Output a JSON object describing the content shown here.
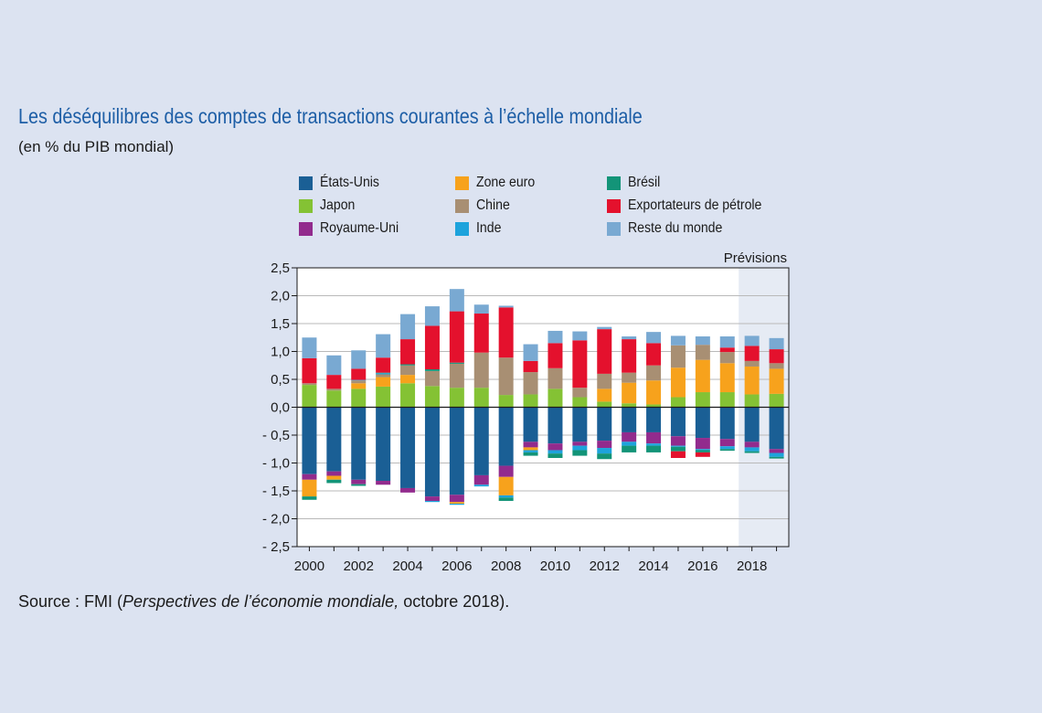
{
  "title": "Les déséquilibres des comptes de transactions courantes à l’échelle mondiale",
  "subtitle": "(en % du PIB mondial)",
  "source": {
    "prefix": "Source : FMI (",
    "italic": "Perspectives de l’économie mondiale,",
    "suffix": " octobre 2018)."
  },
  "chart_data": {
    "type": "bar",
    "stacked": true,
    "forecast_label": "Prévisions",
    "forecast_start_year": 2018,
    "ylim": [
      -2.5,
      2.5
    ],
    "yticks": [
      2.5,
      2.0,
      1.5,
      1.0,
      0.5,
      0.0,
      -0.5,
      -1.0,
      -1.5,
      -2.0,
      -2.5
    ],
    "ytick_labels": [
      "2,5",
      "2,0",
      "1,5",
      "1,0",
      "0,5",
      "0,0",
      "- 0,5",
      "- 1,0",
      "- 1,5",
      "- 2,0",
      "- 2,5"
    ],
    "grid": true,
    "x": [
      2000,
      2001,
      2002,
      2003,
      2004,
      2005,
      2006,
      2007,
      2008,
      2009,
      2010,
      2011,
      2012,
      2013,
      2014,
      2015,
      2016,
      2017,
      2018,
      2019
    ],
    "xtick_labels": [
      "2000",
      "2002",
      "2004",
      "2006",
      "2008",
      "2010",
      "2012",
      "2014",
      "2016",
      "2018"
    ],
    "legend_placement": "top",
    "series": [
      {
        "name": "États-Unis",
        "color": "#1a5f95",
        "values": [
          -1.2,
          -1.15,
          -1.3,
          -1.32,
          -1.45,
          -1.6,
          -1.57,
          -1.22,
          -1.05,
          -0.62,
          -0.65,
          -0.62,
          -0.6,
          -0.45,
          -0.45,
          -0.52,
          -0.55,
          -0.57,
          -0.62,
          -0.75
        ]
      },
      {
        "name": "Japon",
        "color": "#84c234",
        "values": [
          0.4,
          0.3,
          0.33,
          0.37,
          0.43,
          0.38,
          0.35,
          0.35,
          0.22,
          0.23,
          0.33,
          0.18,
          0.1,
          0.07,
          0.05,
          0.18,
          0.27,
          0.27,
          0.23,
          0.24
        ]
      },
      {
        "name": "Royaume-Uni",
        "color": "#922b8d",
        "values": [
          -0.1,
          -0.08,
          -0.08,
          -0.07,
          -0.08,
          -0.08,
          -0.13,
          -0.17,
          -0.2,
          -0.1,
          -0.12,
          -0.07,
          -0.13,
          -0.17,
          -0.2,
          -0.17,
          -0.2,
          -0.13,
          -0.1,
          -0.07
        ]
      },
      {
        "name": "Zone euro",
        "color": "#f7a21c",
        "values": [
          -0.3,
          -0.07,
          0.1,
          0.17,
          0.15,
          0.0,
          -0.03,
          0.0,
          -0.33,
          -0.05,
          0.0,
          0.0,
          0.23,
          0.37,
          0.43,
          0.53,
          0.58,
          0.52,
          0.5,
          0.45
        ]
      },
      {
        "name": "Chine",
        "color": "#a88f73",
        "values": [
          0.03,
          0.03,
          0.05,
          0.05,
          0.17,
          0.27,
          0.43,
          0.63,
          0.67,
          0.4,
          0.37,
          0.17,
          0.27,
          0.18,
          0.27,
          0.4,
          0.27,
          0.2,
          0.1,
          0.1
        ]
      },
      {
        "name": "Inde",
        "color": "#1da3dc",
        "values": [
          0.0,
          0.0,
          0.01,
          0.02,
          0.0,
          -0.02,
          -0.02,
          -0.03,
          -0.04,
          -0.04,
          -0.06,
          -0.08,
          -0.1,
          -0.07,
          -0.04,
          -0.02,
          -0.02,
          -0.05,
          -0.07,
          -0.07
        ]
      },
      {
        "name": "Brésil",
        "color": "#139478",
        "values": [
          -0.06,
          -0.06,
          -0.03,
          0.01,
          0.02,
          0.03,
          0.02,
          0.0,
          -0.06,
          -0.06,
          -0.08,
          -0.1,
          -0.1,
          -0.12,
          -0.12,
          -0.08,
          -0.04,
          -0.03,
          -0.03,
          -0.03
        ]
      },
      {
        "name": "Exportateurs de pétrole",
        "color": "#e4112d",
        "values": [
          0.45,
          0.25,
          0.2,
          0.27,
          0.45,
          0.78,
          0.92,
          0.7,
          0.9,
          0.2,
          0.45,
          0.85,
          0.8,
          0.6,
          0.4,
          -0.12,
          -0.08,
          0.08,
          0.27,
          0.25
        ]
      },
      {
        "name": "Reste du monde",
        "color": "#79a9d2",
        "values": [
          0.37,
          0.35,
          0.33,
          0.42,
          0.45,
          0.35,
          0.4,
          0.16,
          0.03,
          0.3,
          0.22,
          0.16,
          0.04,
          0.05,
          0.2,
          0.17,
          0.15,
          0.2,
          0.18,
          0.2
        ]
      }
    ]
  }
}
